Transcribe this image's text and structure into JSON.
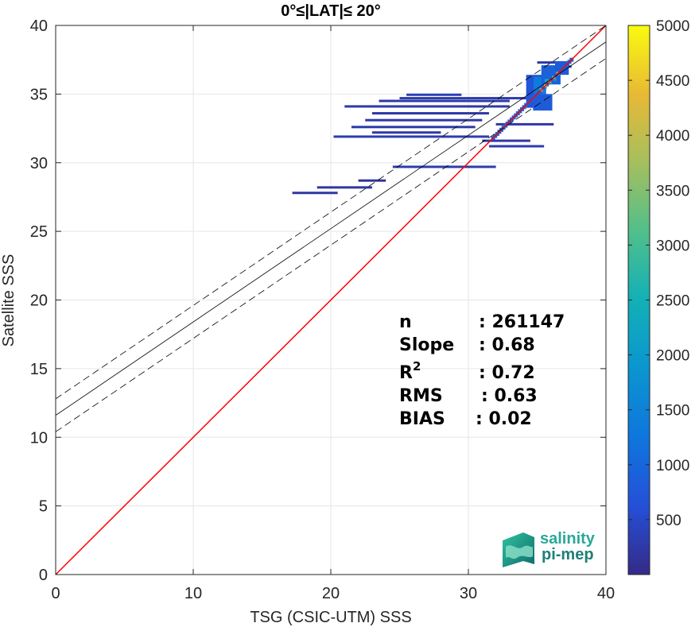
{
  "chart_data": {
    "type": "heatmap",
    "title": "0°≤|LAT|≤ 20°",
    "xlabel": "TSG (CSIC-UTM) SSS",
    "ylabel": "Satellite SSS",
    "xlim": [
      0,
      40
    ],
    "ylim": [
      0,
      40
    ],
    "xticks": [
      "0",
      "10",
      "20",
      "30",
      "40"
    ],
    "yticks": [
      "0",
      "5",
      "10",
      "15",
      "20",
      "25",
      "30",
      "35",
      "40"
    ],
    "grid": true,
    "colormap": "parula",
    "colorbar": {
      "range": [
        0,
        5000
      ],
      "ticks": [
        "500",
        "1000",
        "1500",
        "2000",
        "2500",
        "3000",
        "3500",
        "4000",
        "4500",
        "5000"
      ]
    },
    "lines": [
      {
        "role": "one-to-one",
        "color": "#ff0000",
        "x": [
          0,
          40
        ],
        "y": [
          0,
          40
        ]
      },
      {
        "role": "regression",
        "color": "#000000",
        "style": "solid",
        "x": [
          0,
          40
        ],
        "y": [
          11.6,
          38.8
        ]
      },
      {
        "role": "regression-upper",
        "color": "#000000",
        "style": "dashed",
        "x": [
          0,
          40
        ],
        "y": [
          12.8,
          40.0
        ]
      },
      {
        "role": "regression-lower",
        "color": "#000000",
        "style": "dashed",
        "x": [
          0,
          40
        ],
        "y": [
          10.4,
          37.6
        ]
      }
    ],
    "stats": [
      {
        "label": "n",
        "value": ": 261147"
      },
      {
        "label": "Slope",
        "value": ": 0.68"
      },
      {
        "label": "R",
        "sup": "2",
        "value": ": 0.72"
      },
      {
        "label": "RMS",
        "value": ": 0.63"
      },
      {
        "label": "BIAS",
        "value": ": 0.02"
      }
    ],
    "density_segments": [
      {
        "x0": 17.2,
        "x1": 20.5,
        "y": 27.8,
        "c": 200
      },
      {
        "x0": 19.0,
        "x1": 23.0,
        "y": 28.2,
        "c": 200
      },
      {
        "x0": 22.0,
        "x1": 24.0,
        "y": 28.7,
        "c": 150
      },
      {
        "x0": 24.5,
        "x1": 32.0,
        "y": 29.7,
        "c": 300
      },
      {
        "x0": 20.2,
        "x1": 31.5,
        "y": 31.9,
        "c": 300
      },
      {
        "x0": 23.0,
        "x1": 28.0,
        "y": 32.2,
        "c": 250
      },
      {
        "x0": 21.5,
        "x1": 30.5,
        "y": 32.6,
        "c": 250
      },
      {
        "x0": 22.5,
        "x1": 31.0,
        "y": 33.1,
        "c": 250
      },
      {
        "x0": 23.0,
        "x1": 31.5,
        "y": 33.6,
        "c": 250
      },
      {
        "x0": 21.0,
        "x1": 33.0,
        "y": 34.1,
        "c": 250
      },
      {
        "x0": 23.5,
        "x1": 33.0,
        "y": 34.5,
        "c": 250
      },
      {
        "x0": 25.0,
        "x1": 34.5,
        "y": 34.7,
        "c": 300
      },
      {
        "x0": 25.5,
        "x1": 29.5,
        "y": 34.95,
        "c": 350
      },
      {
        "x0": 31.5,
        "x1": 35.5,
        "y": 31.2,
        "c": 300
      },
      {
        "x0": 31.0,
        "x1": 34.5,
        "y": 31.6,
        "c": 250
      },
      {
        "x0": 32.0,
        "x1": 36.2,
        "y": 32.8,
        "c": 200
      },
      {
        "x0": 34.5,
        "x1": 35.5,
        "y": 35.0,
        "c": 250
      },
      {
        "x0": 35.0,
        "x1": 37.0,
        "y": 37.3,
        "c": 200
      },
      {
        "x0": 35.5,
        "x1": 37.5,
        "y": 37.0,
        "c": 200
      }
    ],
    "density_blobs": [
      {
        "x": 34.8,
        "y": 35.2,
        "w": 1.2,
        "h": 2.4,
        "c": 700
      },
      {
        "x": 35.2,
        "y": 35.5,
        "w": 0.9,
        "h": 1.5,
        "c": 1400
      },
      {
        "x": 35.4,
        "y": 34.4,
        "w": 1.4,
        "h": 1.2,
        "c": 800
      },
      {
        "x": 36.0,
        "y": 36.4,
        "w": 1.4,
        "h": 1.4,
        "c": 900
      },
      {
        "x": 35.8,
        "y": 35.9,
        "w": 0.5,
        "h": 0.4,
        "c": 2400
      },
      {
        "x": 36.2,
        "y": 36.1,
        "w": 0.4,
        "h": 0.3,
        "c": 2000
      },
      {
        "x": 36.8,
        "y": 36.9,
        "w": 1.0,
        "h": 1.0,
        "c": 800
      }
    ],
    "density_diagonal": {
      "x0": 31.8,
      "x1": 37.5,
      "c": 900,
      "hot": 3600
    },
    "logo": {
      "line1": "salinity",
      "line2": "pi-mep"
    }
  }
}
